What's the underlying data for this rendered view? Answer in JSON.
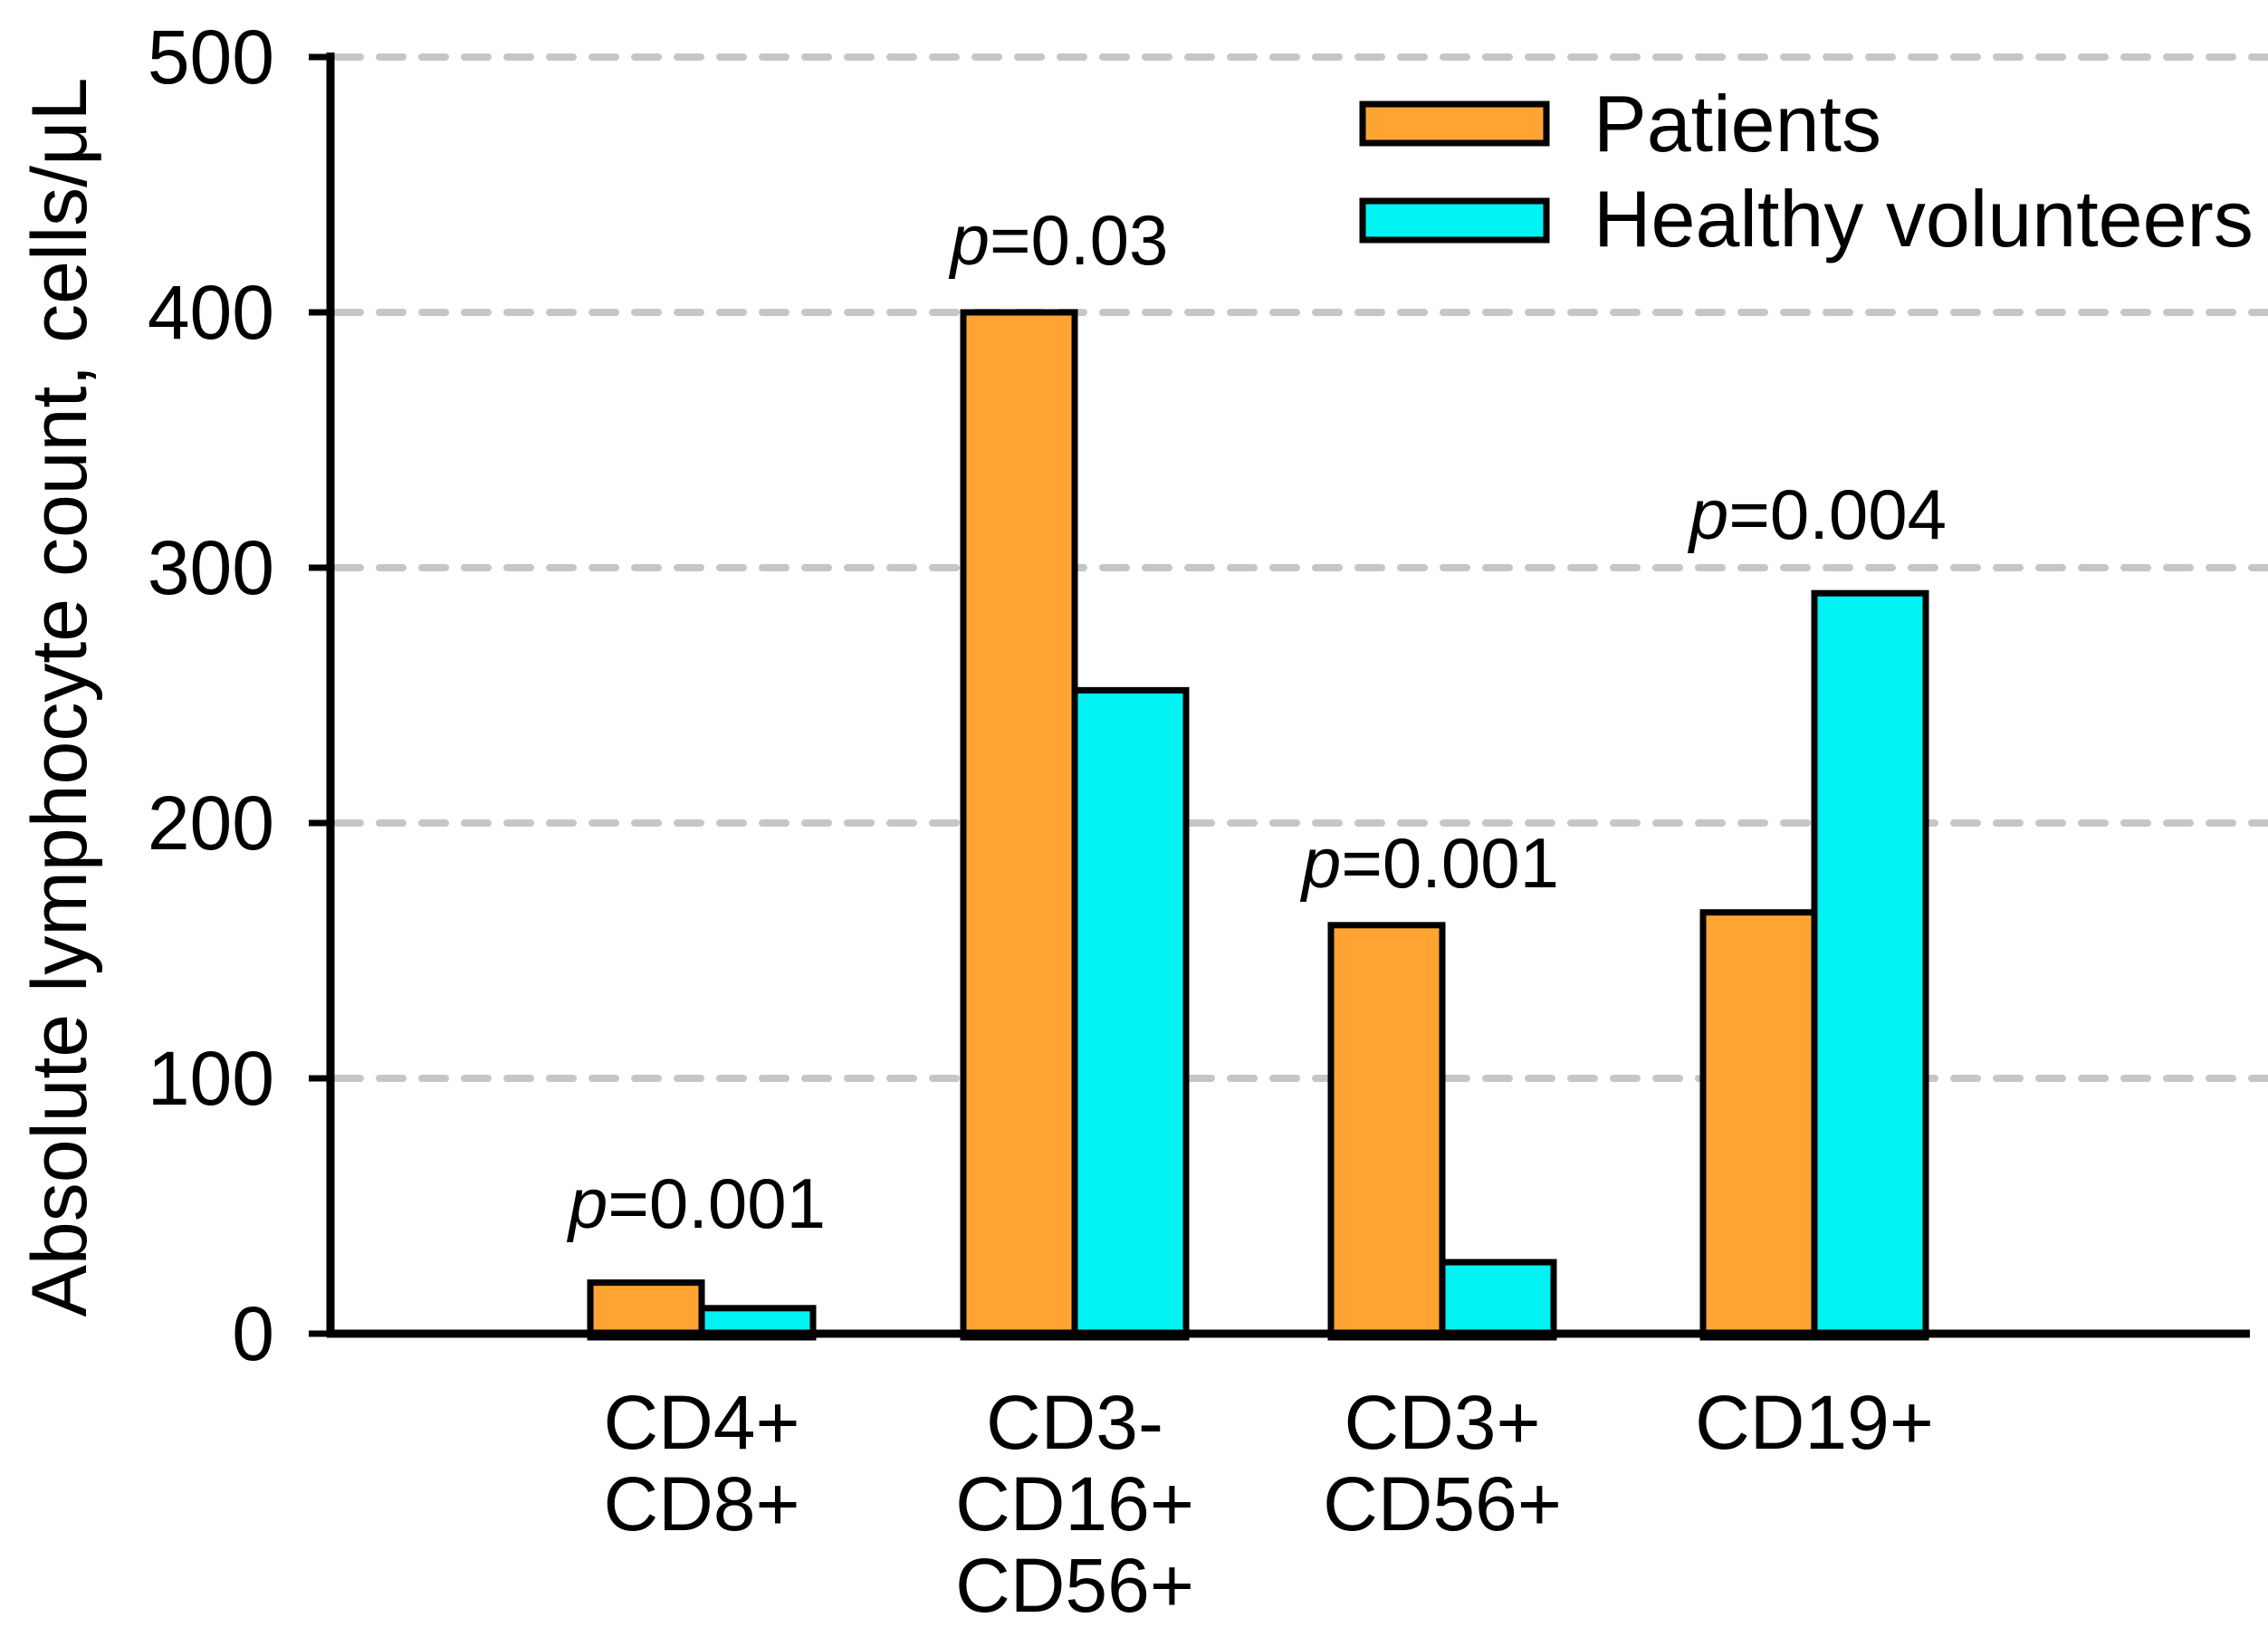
{
  "chart_data": {
    "type": "bar",
    "title": "",
    "ylabel": "Absolute lymphocyte count, cells/μL",
    "xlabel": "",
    "ylim": [
      0,
      500
    ],
    "yticks": [
      0,
      100,
      200,
      300,
      400,
      500
    ],
    "grid": "horizontal-dashed",
    "legend_position": "top-right",
    "categories": [
      [
        "CD4+",
        "CD8+"
      ],
      [
        "CD3-",
        "CD16+",
        "CD56+"
      ],
      [
        "CD3+",
        "CD56+"
      ],
      [
        "CD19+"
      ]
    ],
    "series": [
      {
        "name": "Patients",
        "color": "#FFA433",
        "values": [
          20,
          400,
          160,
          165
        ]
      },
      {
        "name": "Healthy volunteers",
        "color": "#00F2F2",
        "values": [
          10,
          252,
          28,
          290
        ]
      }
    ],
    "p_values": [
      "p=0.001",
      "p=0.03",
      "p=0.001",
      "p=0.004"
    ]
  },
  "colors": {
    "axis": "#000000",
    "bar_border": "#000000",
    "gridline": "#C6C6C6",
    "background": "#FFFFFF",
    "text": "#000000"
  }
}
